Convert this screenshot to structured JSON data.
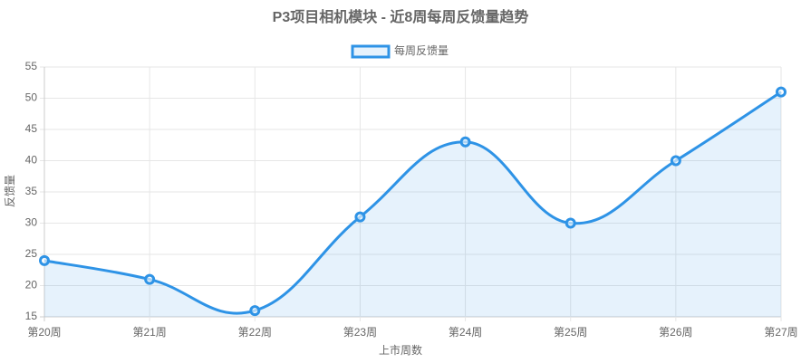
{
  "chart_data": {
    "type": "line",
    "title": "P3项目相机模块 - 近8周每周反馈量趋势",
    "x_label": "上市周数",
    "y_label": "反馈量",
    "categories": [
      "第20周",
      "第21周",
      "第22周",
      "第23周",
      "第24周",
      "第25周",
      "第26周",
      "第27周"
    ],
    "series": [
      {
        "name": "每周反馈量",
        "color": "#2e93e6",
        "values": [
          24,
          21,
          16,
          31,
          43,
          30,
          40,
          51
        ]
      }
    ],
    "ylim": [
      15,
      55
    ],
    "yticks": [
      15,
      20,
      25,
      30,
      35,
      40,
      45,
      50,
      55
    ],
    "grid": true,
    "fill": true,
    "legend": "top"
  }
}
